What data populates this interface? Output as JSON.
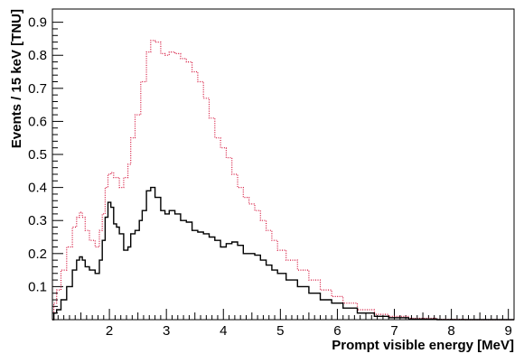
{
  "chart_data": {
    "type": "line",
    "title": "",
    "xlabel": "Prompt visible energy [MeV]",
    "ylabel": "Events / 15 keV [TNU]",
    "xlim": [
      1.0,
      9.1
    ],
    "ylim": [
      0.0,
      0.94
    ],
    "x_ticks": [
      2,
      3,
      4,
      5,
      6,
      7,
      8,
      9
    ],
    "y_ticks": [
      0.1,
      0.2,
      0.3,
      0.4,
      0.5,
      0.6,
      0.7,
      0.8,
      0.9
    ],
    "grid": false,
    "legend": "none",
    "series": [
      {
        "color": "#d4123a",
        "style": "dotted",
        "points": [
          [
            1.0,
            0.0
          ],
          [
            1.05,
            0.05
          ],
          [
            1.1,
            0.09
          ],
          [
            1.2,
            0.15
          ],
          [
            1.3,
            0.22
          ],
          [
            1.4,
            0.28
          ],
          [
            1.45,
            0.31
          ],
          [
            1.5,
            0.325
          ],
          [
            1.55,
            0.31
          ],
          [
            1.6,
            0.27
          ],
          [
            1.7,
            0.24
          ],
          [
            1.8,
            0.22
          ],
          [
            1.85,
            0.27
          ],
          [
            1.9,
            0.32
          ],
          [
            1.95,
            0.4
          ],
          [
            2.0,
            0.44
          ],
          [
            2.05,
            0.445
          ],
          [
            2.1,
            0.43
          ],
          [
            2.15,
            0.43
          ],
          [
            2.2,
            0.4
          ],
          [
            2.3,
            0.43
          ],
          [
            2.35,
            0.47
          ],
          [
            2.4,
            0.55
          ],
          [
            2.5,
            0.62
          ],
          [
            2.6,
            0.72
          ],
          [
            2.7,
            0.81
          ],
          [
            2.75,
            0.845
          ],
          [
            2.85,
            0.84
          ],
          [
            2.95,
            0.805
          ],
          [
            3.0,
            0.8
          ],
          [
            3.1,
            0.81
          ],
          [
            3.2,
            0.805
          ],
          [
            3.3,
            0.79
          ],
          [
            3.4,
            0.78
          ],
          [
            3.5,
            0.75
          ],
          [
            3.6,
            0.72
          ],
          [
            3.7,
            0.67
          ],
          [
            3.8,
            0.61
          ],
          [
            3.9,
            0.55
          ],
          [
            4.0,
            0.52
          ],
          [
            4.1,
            0.49
          ],
          [
            4.2,
            0.44
          ],
          [
            4.3,
            0.4
          ],
          [
            4.4,
            0.37
          ],
          [
            4.5,
            0.35
          ],
          [
            4.6,
            0.33
          ],
          [
            4.7,
            0.3
          ],
          [
            4.8,
            0.27
          ],
          [
            4.9,
            0.24
          ],
          [
            5.0,
            0.21
          ],
          [
            5.2,
            0.18
          ],
          [
            5.4,
            0.15
          ],
          [
            5.6,
            0.12
          ],
          [
            5.8,
            0.09
          ],
          [
            6.0,
            0.07
          ],
          [
            6.2,
            0.05
          ],
          [
            6.5,
            0.03
          ],
          [
            6.8,
            0.016
          ],
          [
            7.0,
            0.01
          ],
          [
            7.5,
            0.004
          ],
          [
            8.0,
            0.001
          ],
          [
            8.5,
            0.0
          ],
          [
            9.1,
            0.0
          ]
        ]
      },
      {
        "color": "#000000",
        "style": "solid",
        "points": [
          [
            1.0,
            0.0
          ],
          [
            1.05,
            0.02
          ],
          [
            1.1,
            0.03
          ],
          [
            1.2,
            0.06
          ],
          [
            1.3,
            0.1
          ],
          [
            1.4,
            0.15
          ],
          [
            1.45,
            0.18
          ],
          [
            1.5,
            0.19
          ],
          [
            1.55,
            0.18
          ],
          [
            1.6,
            0.16
          ],
          [
            1.7,
            0.15
          ],
          [
            1.8,
            0.14
          ],
          [
            1.85,
            0.18
          ],
          [
            1.9,
            0.24
          ],
          [
            1.95,
            0.31
          ],
          [
            2.0,
            0.355
          ],
          [
            2.05,
            0.34
          ],
          [
            2.1,
            0.29
          ],
          [
            2.15,
            0.28
          ],
          [
            2.2,
            0.26
          ],
          [
            2.3,
            0.21
          ],
          [
            2.35,
            0.22
          ],
          [
            2.4,
            0.26
          ],
          [
            2.5,
            0.27
          ],
          [
            2.55,
            0.3
          ],
          [
            2.6,
            0.33
          ],
          [
            2.7,
            0.39
          ],
          [
            2.75,
            0.4
          ],
          [
            2.85,
            0.37
          ],
          [
            2.95,
            0.33
          ],
          [
            3.0,
            0.32
          ],
          [
            3.1,
            0.33
          ],
          [
            3.2,
            0.32
          ],
          [
            3.3,
            0.3
          ],
          [
            3.4,
            0.295
          ],
          [
            3.5,
            0.27
          ],
          [
            3.6,
            0.265
          ],
          [
            3.7,
            0.26
          ],
          [
            3.8,
            0.25
          ],
          [
            3.9,
            0.24
          ],
          [
            4.0,
            0.22
          ],
          [
            4.1,
            0.23
          ],
          [
            4.2,
            0.235
          ],
          [
            4.3,
            0.225
          ],
          [
            4.4,
            0.2
          ],
          [
            4.5,
            0.2
          ],
          [
            4.6,
            0.195
          ],
          [
            4.7,
            0.18
          ],
          [
            4.8,
            0.165
          ],
          [
            4.9,
            0.15
          ],
          [
            5.0,
            0.14
          ],
          [
            5.2,
            0.12
          ],
          [
            5.4,
            0.1
          ],
          [
            5.6,
            0.08
          ],
          [
            5.8,
            0.06
          ],
          [
            6.0,
            0.05
          ],
          [
            6.2,
            0.035
          ],
          [
            6.5,
            0.02
          ],
          [
            6.8,
            0.01
          ],
          [
            7.0,
            0.006
          ],
          [
            7.5,
            0.002
          ],
          [
            8.0,
            0.0
          ],
          [
            9.1,
            0.0
          ]
        ]
      }
    ]
  }
}
